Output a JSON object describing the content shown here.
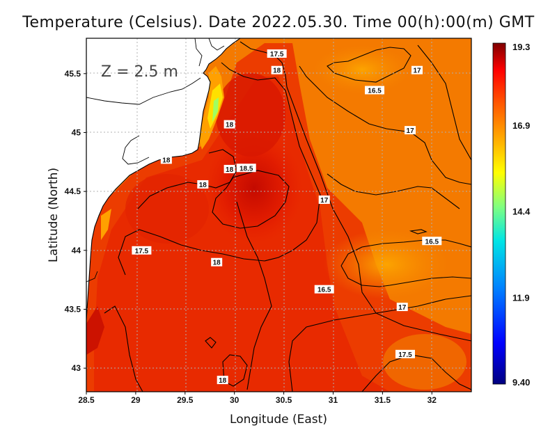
{
  "map": {
    "title": "Temperature (Celsius). Date 2022.05.30. Time 00(h):00(m) GMT",
    "depth_label": "Z = 2.5 m",
    "xlabel": "Longitude (East)",
    "ylabel": "Latitude (North)",
    "lon_range": [
      28.5,
      32.4
    ],
    "lat_range": [
      42.8,
      45.8
    ],
    "lon_ticks": [
      "28.5",
      "29",
      "29.5",
      "30",
      "30.5",
      "31",
      "31.5",
      "32"
    ],
    "lat_ticks": [
      "43",
      "43.5",
      "44",
      "44.5",
      "45",
      "45.5"
    ],
    "grid": true
  },
  "colorbar": {
    "labels": [
      "19.3",
      "16.9",
      "14.4",
      "11.9",
      "9.40"
    ],
    "min": 9.4,
    "max": 19.3,
    "colors": [
      "#00007f",
      "#0000ff",
      "#007fff",
      "#00ffff",
      "#7fff7f",
      "#ffff00",
      "#ffaa00",
      "#ff5500",
      "#ff0000",
      "#7f0000"
    ]
  },
  "contour_labels": [
    {
      "text": "17.5",
      "lon": 30.43,
      "lat": 45.67
    },
    {
      "text": "18",
      "lon": 30.43,
      "lat": 45.53
    },
    {
      "text": "17",
      "lon": 31.85,
      "lat": 45.53
    },
    {
      "text": "16.5",
      "lon": 31.42,
      "lat": 45.36
    },
    {
      "text": "18",
      "lon": 29.95,
      "lat": 45.07
    },
    {
      "text": "17",
      "lon": 31.78,
      "lat": 45.02
    },
    {
      "text": "18",
      "lon": 29.31,
      "lat": 44.77
    },
    {
      "text": "18",
      "lon": 29.95,
      "lat": 44.69
    },
    {
      "text": "18.5",
      "lon": 30.12,
      "lat": 44.7
    },
    {
      "text": "18",
      "lon": 29.68,
      "lat": 44.56
    },
    {
      "text": "17",
      "lon": 30.91,
      "lat": 44.43
    },
    {
      "text": "16.5",
      "lon": 32.0,
      "lat": 44.08
    },
    {
      "text": "17.5",
      "lon": 29.06,
      "lat": 44.0
    },
    {
      "text": "18",
      "lon": 29.82,
      "lat": 43.9
    },
    {
      "text": "16.5",
      "lon": 30.91,
      "lat": 43.67
    },
    {
      "text": "17",
      "lon": 31.7,
      "lat": 43.52
    },
    {
      "text": "17.5",
      "lon": 31.73,
      "lat": 43.12
    },
    {
      "text": "18",
      "lon": 29.88,
      "lat": 42.9
    }
  ]
}
